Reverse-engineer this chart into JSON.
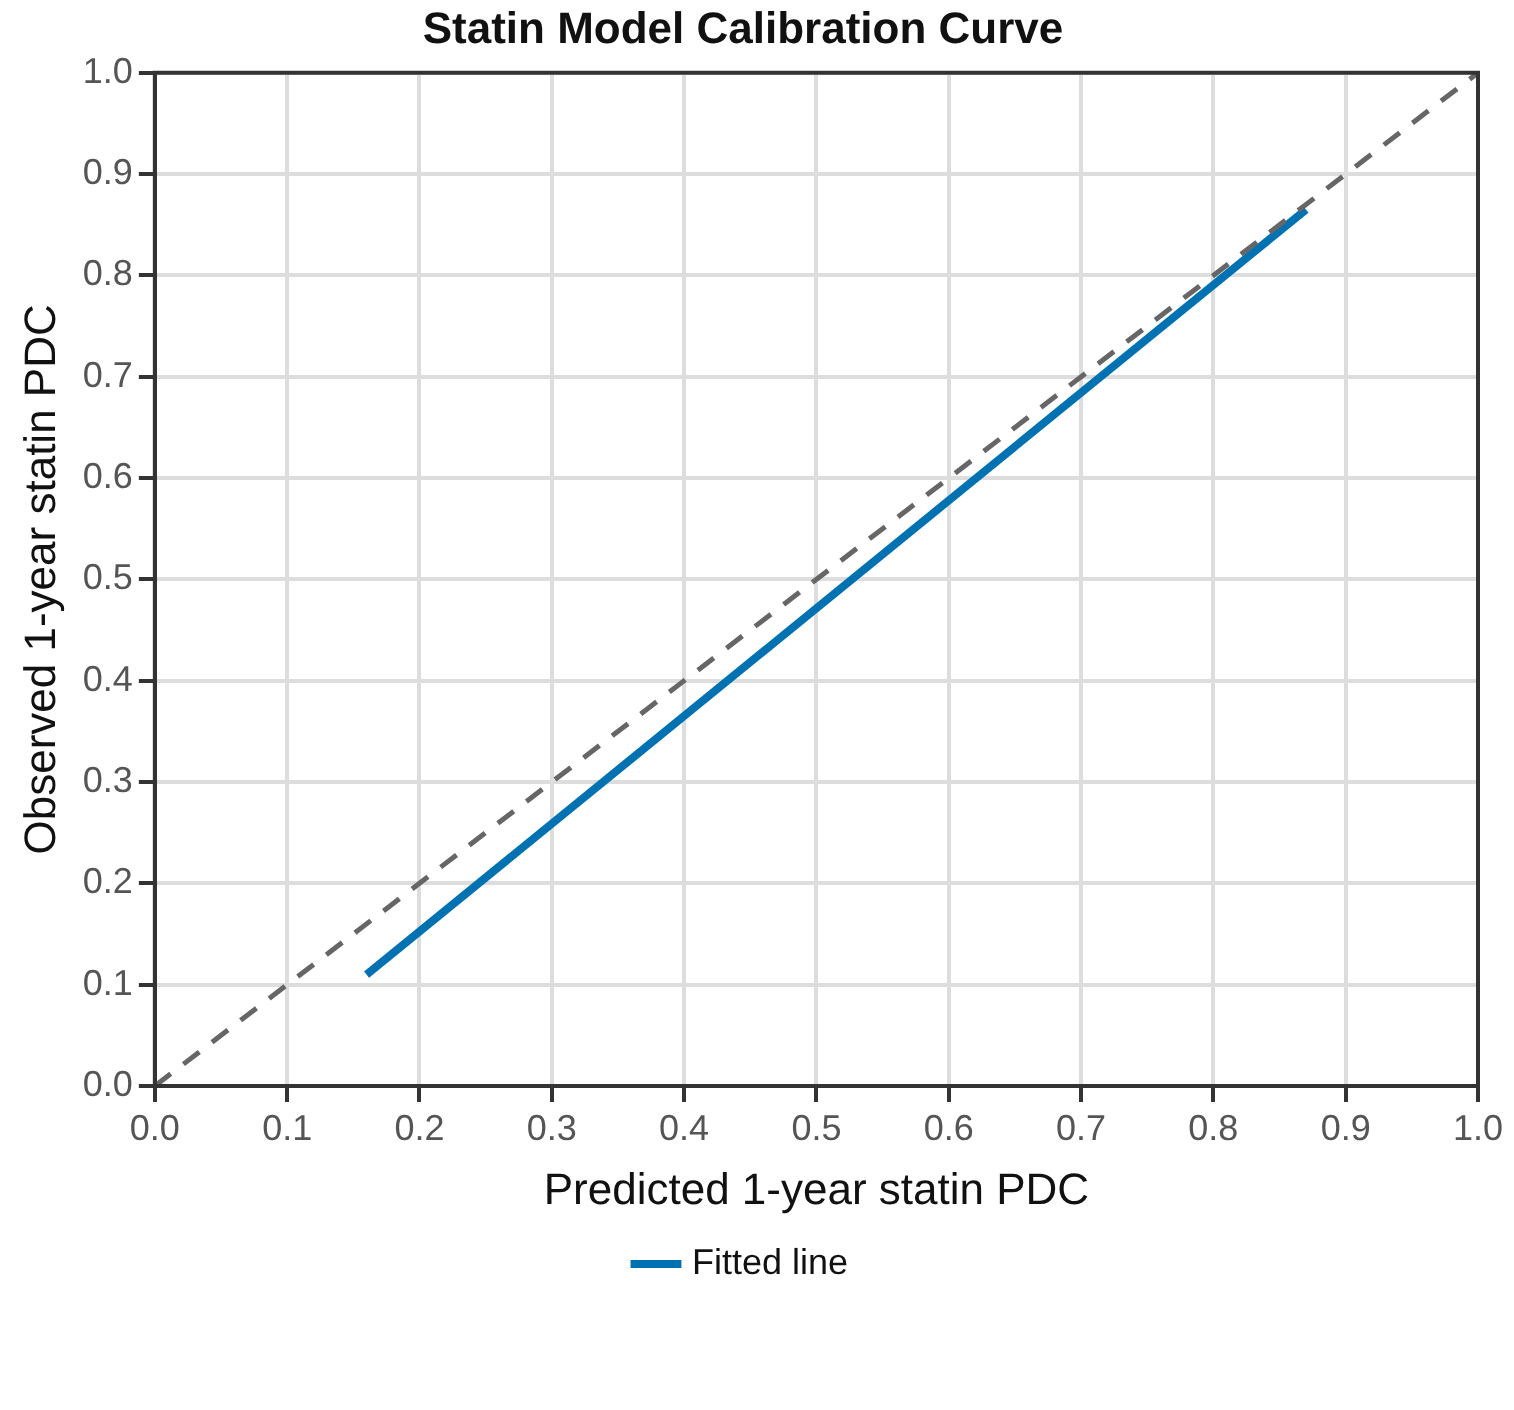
{
  "chart_data": {
    "type": "line",
    "title": "Statin Model Calibration Curve",
    "xlabel": "Predicted 1-year statin PDC",
    "ylabel": "Observed 1-year statin PDC",
    "series": [
      {
        "x": [
          0,
          1
        ],
        "values": [
          0,
          1
        ],
        "color": "#666666",
        "line_style": "dashed"
      },
      {
        "name": "Fitted line",
        "x": [
          0.16,
          0.87
        ],
        "values": [
          0.11,
          0.865
        ],
        "color": "#0072b2",
        "line_style": "solid"
      }
    ],
    "xlim": [
      0,
      1
    ],
    "ylim": [
      0,
      1
    ],
    "xticks": [
      {
        "value": 0,
        "label": "0.0"
      },
      {
        "value": 0.1,
        "label": "0.1"
      },
      {
        "value": 0.2,
        "label": "0.2"
      },
      {
        "value": 0.3,
        "label": "0.3"
      },
      {
        "value": 0.4,
        "label": "0.4"
      },
      {
        "value": 0.5,
        "label": "0.5"
      },
      {
        "value": 0.6,
        "label": "0.6"
      },
      {
        "value": 0.7,
        "label": "0.7"
      },
      {
        "value": 0.8,
        "label": "0.8"
      },
      {
        "value": 0.9,
        "label": "0.9"
      },
      {
        "value": 1,
        "label": "1.0"
      }
    ],
    "yticks": [
      {
        "value": 0,
        "label": "0.0"
      },
      {
        "value": 0.1,
        "label": "0.1"
      },
      {
        "value": 0.2,
        "label": "0.2"
      },
      {
        "value": 0.3,
        "label": "0.3"
      },
      {
        "value": 0.4,
        "label": "0.4"
      },
      {
        "value": 0.5,
        "label": "0.5"
      },
      {
        "value": 0.6,
        "label": "0.6"
      },
      {
        "value": 0.7,
        "label": "0.7"
      },
      {
        "value": 0.8,
        "label": "0.8"
      },
      {
        "value": 0.9,
        "label": "0.9"
      },
      {
        "value": 1,
        "label": "1.0"
      }
    ],
    "grid": true,
    "legend": "bottom",
    "marker": "none"
  }
}
